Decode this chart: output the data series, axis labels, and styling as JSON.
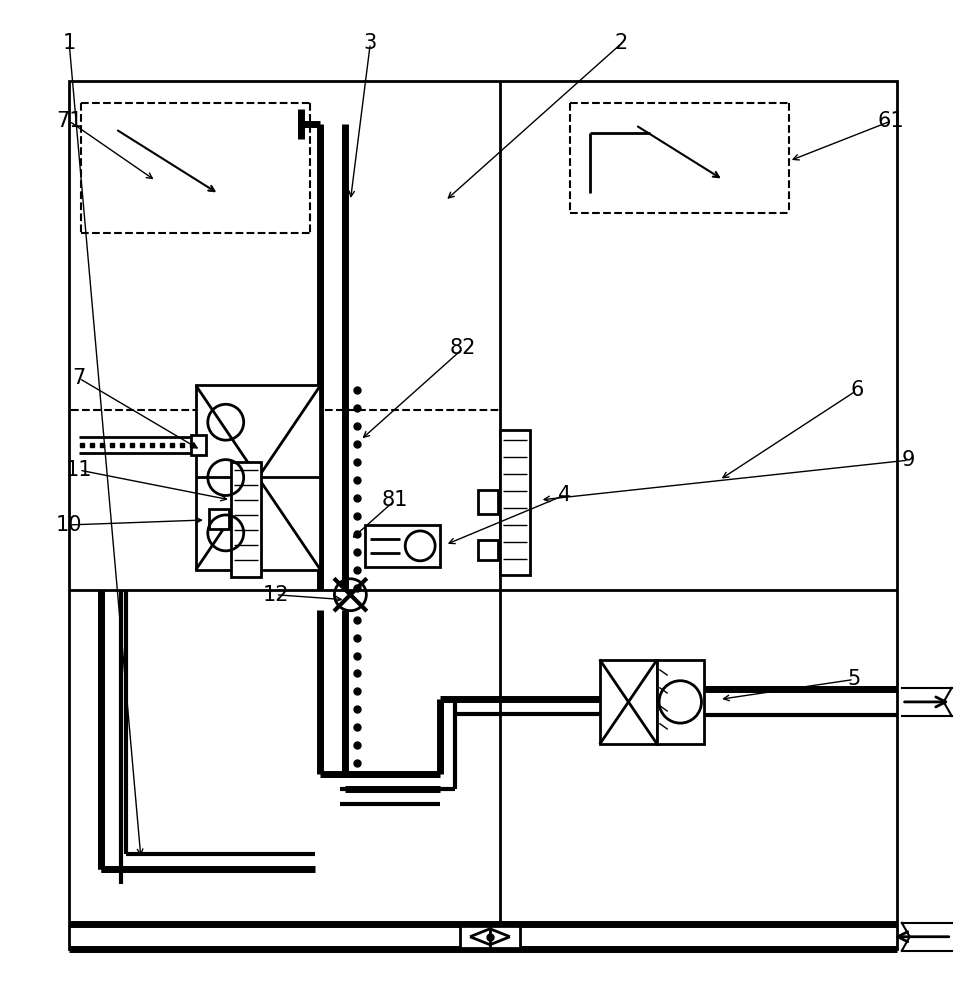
{
  "bg_color": "#ffffff",
  "lc": "#000000",
  "lw": 2.0,
  "tlw": 5.0,
  "dlw": 1.5
}
